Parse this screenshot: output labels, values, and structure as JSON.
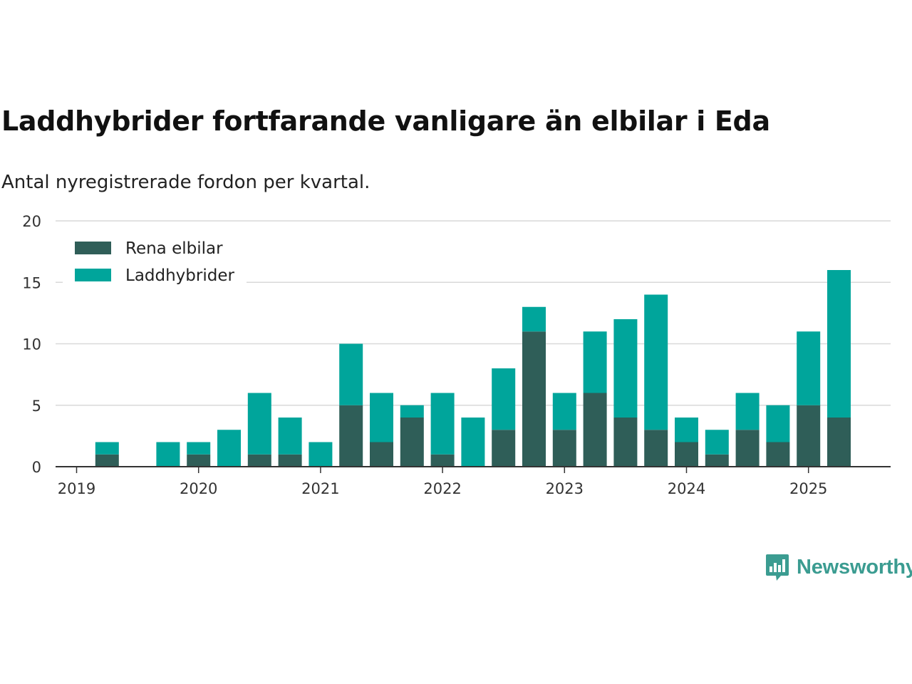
{
  "title": "Laddhybrider fortfarande vanligare än elbilar i Eda",
  "subtitle": "Antal nyregistrerade fordon per kvartal.",
  "brand": "Newsworthy",
  "colors": {
    "rena_elbilar": "#2f5e58",
    "laddhybrider": "#00a59b",
    "grid": "#d9d9d9",
    "axis": "#333333",
    "brand": "#3b9c91"
  },
  "chart_data": {
    "type": "bar",
    "stacked": true,
    "quarters": [
      "2019 Q1",
      "2019 Q2",
      "2019 Q3",
      "2019 Q4",
      "2020 Q1",
      "2020 Q2",
      "2020 Q3",
      "2020 Q4",
      "2021 Q1",
      "2021 Q2",
      "2021 Q3",
      "2021 Q4",
      "2022 Q1",
      "2022 Q2",
      "2022 Q3",
      "2022 Q4",
      "2023 Q1",
      "2023 Q2",
      "2023 Q3",
      "2023 Q4",
      "2024 Q1",
      "2024 Q2",
      "2024 Q3",
      "2024 Q4",
      "2025 Q1",
      "2025 Q2"
    ],
    "x_tick_labels": [
      "2019",
      "2020",
      "2021",
      "2022",
      "2023",
      "2024",
      "2025"
    ],
    "y_ticks": [
      0,
      5,
      10,
      15,
      20
    ],
    "ylim": [
      0,
      20
    ],
    "grid": true,
    "legend_position": "top-left",
    "series": [
      {
        "name": "Rena elbilar",
        "values": [
          0,
          1,
          0,
          0,
          1,
          0,
          1,
          1,
          0,
          5,
          2,
          4,
          1,
          0,
          3,
          11,
          3,
          6,
          4,
          3,
          2,
          1,
          3,
          2,
          5,
          4
        ]
      },
      {
        "name": "Laddhybrider",
        "values": [
          0,
          1,
          0,
          2,
          1,
          3,
          5,
          3,
          2,
          5,
          4,
          1,
          5,
          4,
          5,
          2,
          3,
          5,
          8,
          11,
          2,
          2,
          3,
          3,
          6,
          12
        ]
      }
    ]
  }
}
